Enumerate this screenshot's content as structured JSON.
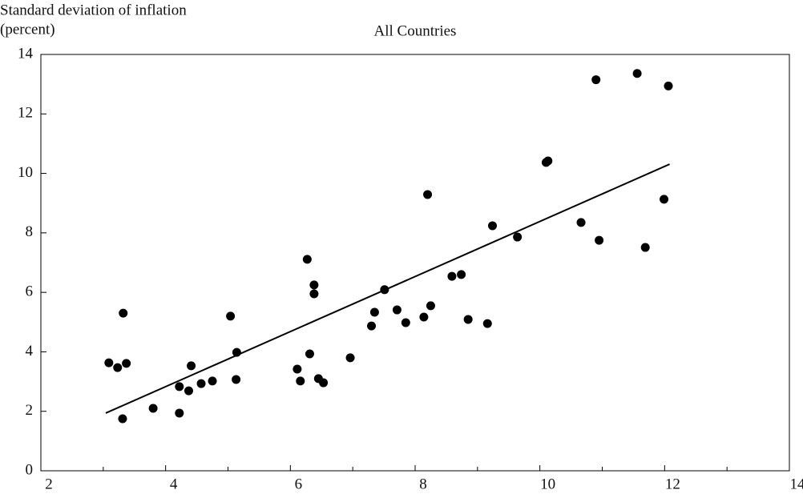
{
  "chart_data": {
    "type": "scatter",
    "title": "All Countries",
    "ylabel": [
      "Standard deviation of inflation",
      "(percent)"
    ],
    "color": "#000000",
    "x": [
      3.09,
      3.23,
      3.32,
      3.37,
      3.31,
      3.8,
      4.22,
      4.22,
      4.37,
      4.41,
      4.57,
      4.75,
      5.04,
      5.14,
      5.13,
      6.11,
      6.16,
      6.27,
      6.31,
      6.38,
      6.38,
      6.45,
      6.53,
      6.96,
      7.3,
      7.35,
      7.51,
      7.71,
      7.85,
      8.14,
      8.2,
      8.25,
      8.59,
      8.74,
      8.85,
      9.16,
      9.24,
      9.64,
      10.1,
      10.13,
      10.66,
      10.9,
      10.95,
      11.56,
      11.69,
      11.99,
      12.06
    ],
    "values": [
      3.63,
      3.47,
      5.3,
      3.61,
      1.75,
      2.1,
      2.83,
      1.94,
      2.69,
      3.53,
      2.93,
      3.02,
      5.2,
      3.98,
      3.07,
      3.42,
      3.02,
      7.11,
      3.93,
      6.25,
      5.95,
      3.1,
      2.96,
      3.8,
      4.87,
      5.33,
      6.09,
      5.41,
      4.98,
      5.17,
      9.29,
      5.55,
      6.54,
      6.6,
      5.09,
      4.95,
      8.24,
      7.86,
      10.37,
      10.42,
      8.35,
      13.15,
      7.75,
      13.36,
      7.51,
      9.13,
      12.94
    ],
    "trendline": {
      "x": [
        3.04,
        12.08
      ],
      "values": [
        1.94,
        10.31
      ]
    },
    "xlim": [
      2,
      14
    ],
    "xticks": [
      2,
      4,
      6,
      8,
      10,
      12,
      14
    ],
    "xminorticks": [
      3,
      5,
      7,
      9,
      11,
      13
    ],
    "ylim": [
      0,
      14
    ],
    "yticks": [
      0,
      2,
      4,
      6,
      8,
      10,
      12,
      14
    ]
  }
}
